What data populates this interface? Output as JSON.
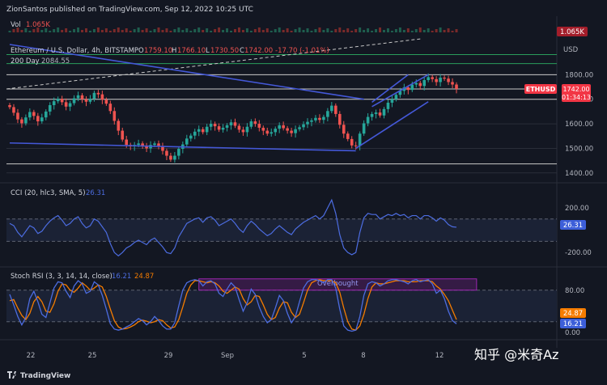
{
  "header": {
    "publisher": "ZionSantos published on TradingView.com, Sep 12, 2022 10:25 UTC"
  },
  "footer": {
    "brand": "TradingView",
    "watermark": "知乎 @米奇Az"
  },
  "colors": {
    "background": "#131722",
    "grid": "#2a2e39",
    "up": "#26a69a",
    "down": "#ef5350",
    "trendline": "#4458d8",
    "cci": "#4c6ce0",
    "stoch_k": "#4c6ce0",
    "stoch_d": "#f57c00",
    "ma200": "#c8c8c8",
    "overbought": "#9c27b0",
    "price_tag": "#f23645"
  },
  "chart_data": [
    {
      "type": "line",
      "name": "main",
      "title": "Ethereum / U.S. Dollar, 4h, BITSTAMP",
      "ohlc": {
        "O": "1759.10",
        "H": "1766.10",
        "L": "1730.50",
        "C": "1742.00",
        "change": "-17.70 (-1.01%)"
      },
      "ohlc_labels": {
        "O": "O",
        "H": "H",
        "L": "L",
        "C": "C"
      },
      "volume_label": "Vol",
      "volume_value": "1.065K",
      "volume_tag": "1.065K",
      "ma_label": "200 Day",
      "ma_value": "2084.55",
      "currency": "USD",
      "symbol": "ETHUSD",
      "last_price": "1742.00",
      "countdown": "01:34:13",
      "y_ticks": [
        1800.0,
        1700.0,
        1600.0,
        1500.0,
        1400.0
      ],
      "y_tick_labels": [
        "1800.00",
        "1700.00",
        "1600.00",
        "1500.00",
        "1400.00"
      ],
      "ylim": [
        1373,
        1923
      ],
      "horizontal_levels": [
        1882,
        1845,
        1800,
        1742,
        1700,
        1437
      ],
      "x_labels": [
        "22",
        "25",
        "29",
        "Sep",
        "5",
        "8",
        "12"
      ],
      "closes": [
        1668,
        1645,
        1618,
        1602,
        1626,
        1648,
        1632,
        1610,
        1626,
        1650,
        1676,
        1692,
        1702,
        1688,
        1670,
        1684,
        1704,
        1716,
        1700,
        1690,
        1702,
        1726,
        1720,
        1698,
        1682,
        1652,
        1612,
        1572,
        1536,
        1514,
        1508,
        1514,
        1520,
        1510,
        1500,
        1514,
        1520,
        1508,
        1490,
        1470,
        1454,
        1470,
        1498,
        1516,
        1540,
        1552,
        1568,
        1578,
        1566,
        1588,
        1600,
        1590,
        1576,
        1584,
        1594,
        1606,
        1592,
        1576,
        1566,
        1588,
        1610,
        1600,
        1584,
        1572,
        1560,
        1566,
        1580,
        1594,
        1582,
        1572,
        1562,
        1578,
        1586,
        1598,
        1608,
        1614,
        1624,
        1616,
        1628,
        1652,
        1674,
        1640,
        1596,
        1560,
        1538,
        1512,
        1510,
        1560,
        1602,
        1628,
        1640,
        1646,
        1634,
        1660,
        1686,
        1700,
        1718,
        1734,
        1748,
        1738,
        1760,
        1766,
        1754,
        1778,
        1790,
        1782,
        1770,
        1788,
        1784,
        1770,
        1760,
        1742
      ],
      "trendlines": [
        {
          "from": [
            0,
            1923
          ],
          "to": [
            88,
            1700
          ]
        },
        {
          "from": [
            0,
            1522
          ],
          "to": [
            86,
            1490
          ]
        },
        {
          "from": [
            86,
            1500
          ],
          "to": [
            104,
            1690
          ]
        },
        {
          "from": [
            90,
            1670
          ],
          "to": [
            104,
            1800
          ]
        }
      ]
    },
    {
      "type": "line",
      "name": "cci",
      "label": "CCI (20, hlc3, SMA, 5)",
      "value": "26.31",
      "tag": "26.31",
      "ylim": [
        -300,
        380
      ],
      "y_ticks": [
        200.0,
        -200.0
      ],
      "y_tick_labels": [
        "200.00",
        "-200.00"
      ],
      "bands": [
        100,
        -100
      ],
      "values": [
        60,
        40,
        -20,
        -60,
        -10,
        40,
        20,
        -30,
        -10,
        40,
        80,
        110,
        130,
        90,
        40,
        60,
        100,
        120,
        60,
        20,
        40,
        100,
        80,
        30,
        -20,
        -120,
        -200,
        -230,
        -200,
        -160,
        -140,
        -110,
        -90,
        -110,
        -130,
        -90,
        -70,
        -110,
        -150,
        -200,
        -210,
        -160,
        -60,
        0,
        60,
        80,
        100,
        110,
        70,
        110,
        120,
        90,
        40,
        60,
        80,
        100,
        60,
        10,
        -20,
        40,
        80,
        50,
        10,
        -20,
        -50,
        -30,
        10,
        40,
        10,
        -20,
        -40,
        10,
        40,
        70,
        90,
        110,
        130,
        100,
        130,
        200,
        270,
        150,
        -40,
        -160,
        -200,
        -220,
        -200,
        -20,
        110,
        150,
        140,
        140,
        100,
        120,
        140,
        130,
        150,
        130,
        140,
        110,
        130,
        130,
        100,
        130,
        130,
        110,
        80,
        110,
        90,
        50,
        30,
        26
      ]
    },
    {
      "type": "line",
      "name": "stoch_rsi",
      "label": "Stoch RSI (3, 3, 14, 14, close)",
      "k_value": "16.21",
      "d_value": "24.87",
      "k_tag": "16.21",
      "d_tag": "24.87",
      "ylim": [
        -5,
        115
      ],
      "y_ticks": [
        80.0,
        0.0
      ],
      "y_tick_labels": [
        "80.00",
        "0.00"
      ],
      "bands": [
        80,
        20
      ],
      "overbought_label": "Overbought",
      "overbought_span": [
        47,
        116
      ],
      "k": [
        72,
        52,
        30,
        14,
        28,
        64,
        78,
        58,
        34,
        28,
        56,
        84,
        96,
        94,
        78,
        66,
        88,
        98,
        92,
        74,
        78,
        96,
        90,
        70,
        44,
        16,
        6,
        4,
        6,
        10,
        14,
        20,
        26,
        22,
        14,
        20,
        30,
        22,
        12,
        6,
        6,
        18,
        50,
        80,
        94,
        98,
        100,
        98,
        88,
        96,
        98,
        92,
        74,
        68,
        82,
        94,
        86,
        62,
        40,
        56,
        82,
        72,
        48,
        30,
        18,
        24,
        46,
        70,
        60,
        36,
        18,
        30,
        58,
        84,
        96,
        100,
        100,
        98,
        94,
        100,
        100,
        84,
        44,
        12,
        4,
        2,
        4,
        30,
        70,
        92,
        96,
        94,
        88,
        92,
        98,
        100,
        100,
        98,
        96,
        92,
        98,
        100,
        96,
        98,
        100,
        92,
        74,
        80,
        64,
        40,
        22,
        16
      ],
      "d": [
        60,
        62,
        46,
        32,
        24,
        36,
        58,
        68,
        58,
        40,
        38,
        54,
        78,
        92,
        90,
        80,
        76,
        84,
        94,
        88,
        80,
        84,
        90,
        86,
        68,
        44,
        22,
        10,
        6,
        7,
        10,
        14,
        20,
        23,
        21,
        18,
        20,
        24,
        22,
        14,
        8,
        10,
        24,
        48,
        74,
        90,
        98,
        98,
        96,
        94,
        96,
        94,
        88,
        78,
        74,
        80,
        86,
        82,
        64,
        52,
        58,
        70,
        68,
        52,
        34,
        24,
        28,
        46,
        58,
        56,
        38,
        28,
        34,
        56,
        80,
        94,
        98,
        100,
        98,
        98,
        98,
        94,
        76,
        46,
        20,
        6,
        4,
        12,
        34,
        64,
        86,
        94,
        92,
        92,
        94,
        96,
        98,
        98,
        98,
        96,
        96,
        96,
        98,
        98,
        98,
        96,
        88,
        82,
        72,
        60,
        42,
        24
      ]
    }
  ]
}
